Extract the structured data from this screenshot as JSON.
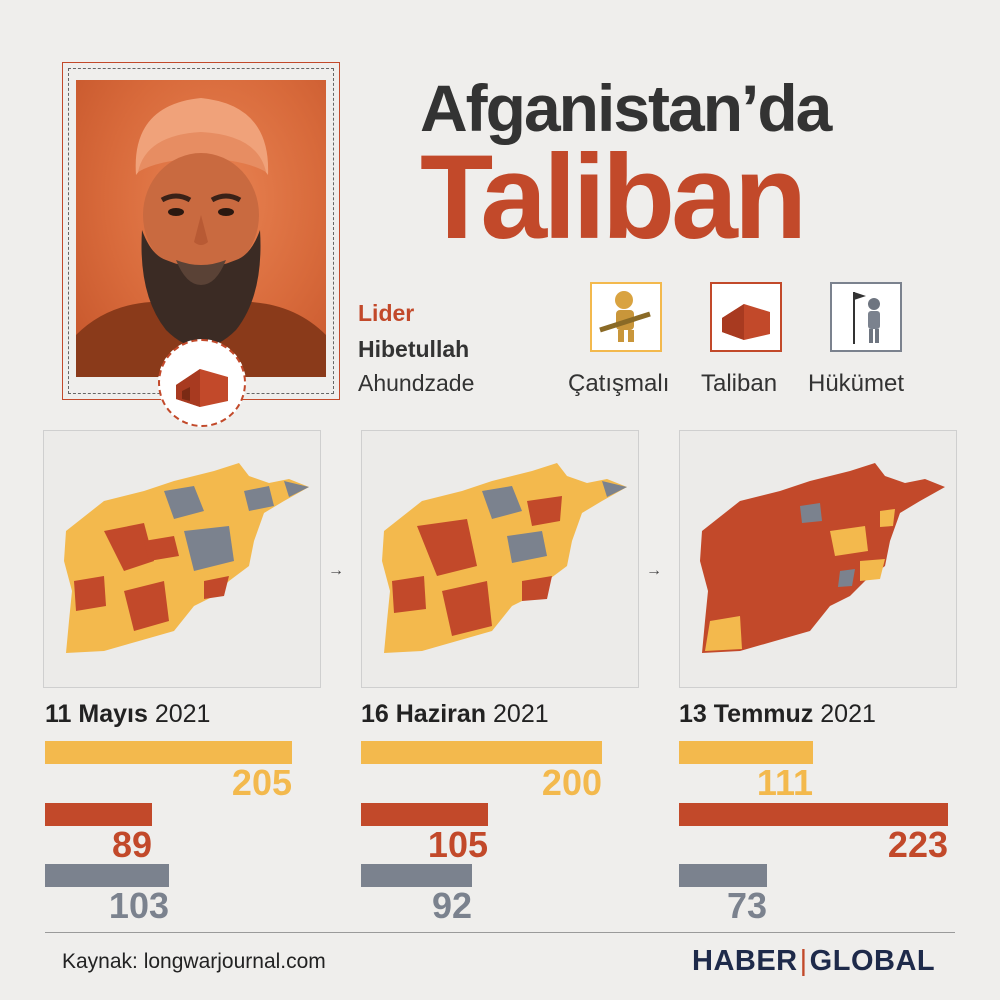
{
  "title": {
    "line1": "Afganistan’da",
    "line2": "Taliban"
  },
  "leader": {
    "role": "Lider",
    "first_name": "Hibetullah",
    "last_name": "Ahundzade"
  },
  "legend": [
    {
      "label": "Çatışmalı",
      "color": "#f3b94d",
      "icon": "soldier-icon"
    },
    {
      "label": "Taliban",
      "color": "#c2492a",
      "icon": "tent-icon"
    },
    {
      "label": "Hükümet",
      "color": "#7b828e",
      "icon": "flag-soldier-icon"
    }
  ],
  "colors": {
    "contested": "#f3b94d",
    "taliban": "#c2492a",
    "government": "#7b828e"
  },
  "chart_data": {
    "type": "bar",
    "series_names": [
      "Çatışmalı",
      "Taliban",
      "Hükümet"
    ],
    "panels": [
      {
        "date_bold": "11 Mayıs",
        "year": "2021",
        "values": {
          "contested": 205,
          "taliban": 89,
          "government": 103
        }
      },
      {
        "date_bold": "16 Haziran",
        "year": "2021",
        "values": {
          "contested": 200,
          "taliban": 105,
          "government": 92
        }
      },
      {
        "date_bold": "13 Temmuz",
        "year": "2021",
        "values": {
          "contested": 111,
          "taliban": 223,
          "government": 73
        }
      }
    ]
  },
  "footer": {
    "source": "Kaynak: longwarjournal.com",
    "brand_left": "HABER",
    "brand_right": "GLOBAL"
  }
}
